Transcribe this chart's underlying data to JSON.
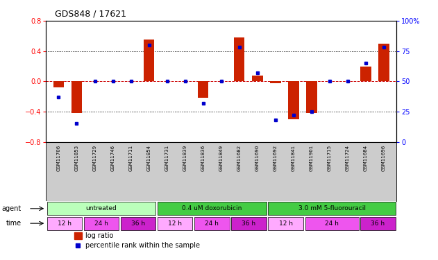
{
  "title": "GDS848 / 17621",
  "samples": [
    "GSM11706",
    "GSM11853",
    "GSM11729",
    "GSM11746",
    "GSM11711",
    "GSM11854",
    "GSM11731",
    "GSM11839",
    "GSM11836",
    "GSM11849",
    "GSM11682",
    "GSM11690",
    "GSM11692",
    "GSM11841",
    "GSM11901",
    "GSM11715",
    "GSM11724",
    "GSM11684",
    "GSM11696"
  ],
  "log_ratio": [
    -0.08,
    -0.42,
    0.0,
    0.0,
    0.0,
    0.55,
    0.0,
    0.0,
    -0.22,
    0.0,
    0.58,
    0.08,
    -0.02,
    -0.5,
    -0.42,
    0.0,
    0.0,
    0.2,
    0.5
  ],
  "percentile_rank": [
    37,
    15,
    50,
    50,
    50,
    80,
    50,
    50,
    32,
    50,
    78,
    57,
    18,
    22,
    25,
    50,
    50,
    65,
    78
  ],
  "ylim_left": [
    -0.8,
    0.8
  ],
  "ylim_right": [
    0,
    100
  ],
  "yticks_left": [
    -0.8,
    -0.4,
    0.0,
    0.4,
    0.8
  ],
  "yticks_right": [
    0,
    25,
    50,
    75,
    100
  ],
  "bar_color": "#cc2200",
  "dot_color": "#0000cc",
  "zero_line_color": "#cc0000",
  "grid_color": "#000000",
  "bg_color": "#ffffff",
  "sample_label_bg": "#cccccc",
  "agent_colors": [
    "#bbffbb",
    "#44cc44",
    "#44cc44"
  ],
  "agent_labels": [
    "untreated",
    "0.4 uM doxorubicin",
    "3.0 mM 5-fluorouracil"
  ],
  "agent_starts": [
    0,
    6,
    12
  ],
  "agent_ends": [
    6,
    12,
    19
  ],
  "time_colors_cycle": [
    "#ffaaff",
    "#ee55ee",
    "#cc22cc"
  ],
  "time_labels": [
    "12 h",
    "24 h",
    "36 h",
    "12 h",
    "24 h",
    "36 h",
    "12 h",
    "24 h",
    "36 h"
  ],
  "time_starts": [
    0,
    2,
    4,
    6,
    8,
    10,
    12,
    14,
    17
  ],
  "time_ends": [
    2,
    4,
    6,
    8,
    10,
    12,
    14,
    17,
    19
  ]
}
